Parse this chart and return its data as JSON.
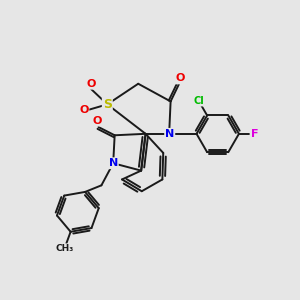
{
  "background_color": "#e6e6e6",
  "figsize": [
    3.0,
    3.0
  ],
  "dpi": 100,
  "bond_color": "#1a1a1a",
  "bond_width": 1.4,
  "atom_colors": {
    "N": "#0000ee",
    "O": "#ee0000",
    "S": "#bbbb00",
    "Cl": "#00bb00",
    "F": "#dd00dd",
    "C": "#1a1a1a"
  },
  "atom_font_sizes": {
    "N": 8,
    "O": 8,
    "S": 9,
    "Cl": 7,
    "F": 8,
    "C": 7
  }
}
